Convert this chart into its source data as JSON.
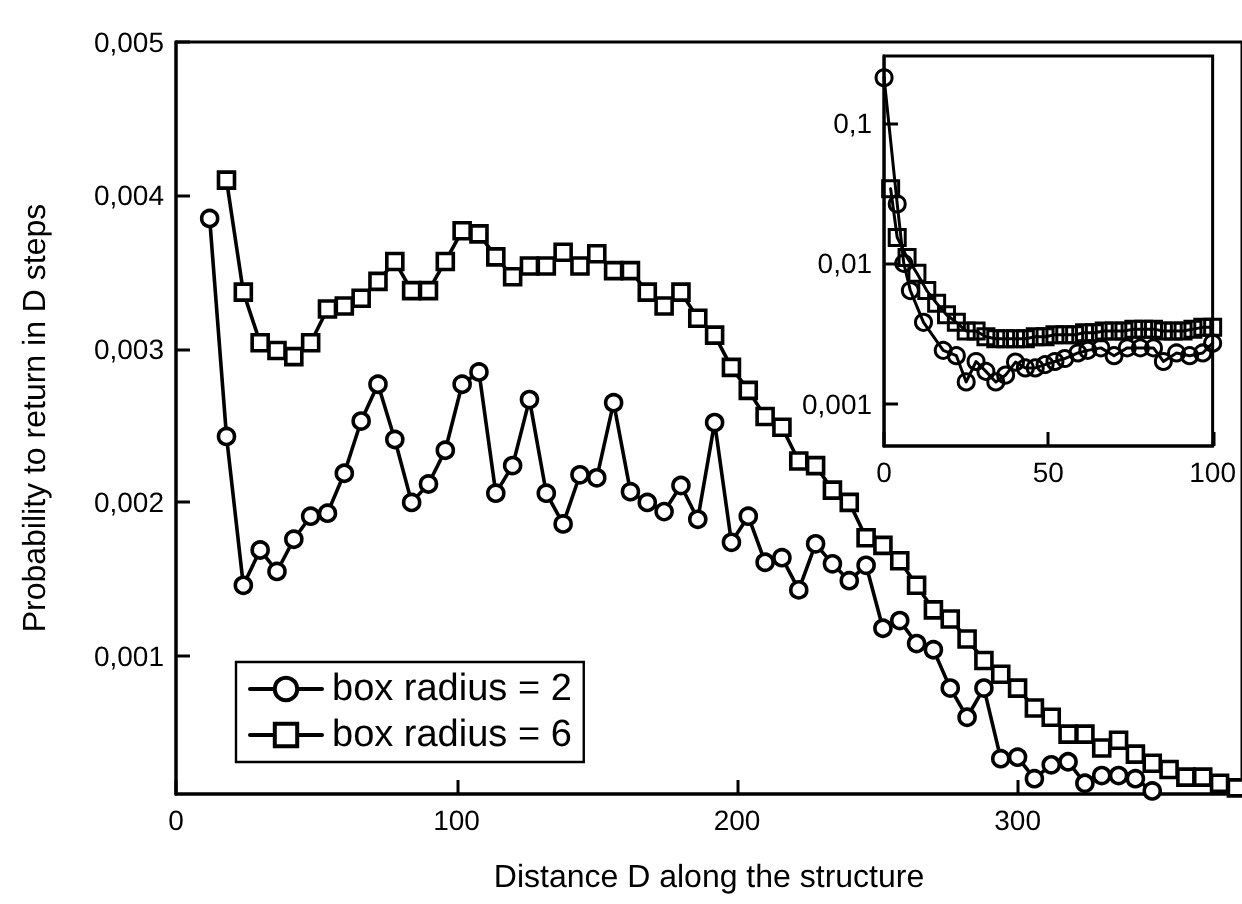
{
  "chart_data": [
    {
      "type": "line",
      "xlabel": "Distance D along the structure",
      "ylabel": "Probability to return in D steps",
      "xlim": [
        0,
        380
      ],
      "xticks": [
        0,
        100,
        200,
        300
      ],
      "ylim": [
        0.0001,
        0.005
      ],
      "yticks": [
        {
          "value": 0.001,
          "label": "0,001"
        },
        {
          "value": 0.002,
          "label": "0,002"
        },
        {
          "value": 0.003,
          "label": "0,003"
        },
        {
          "value": 0.004,
          "label": "0,004"
        },
        {
          "value": 0.005,
          "label": "0,005"
        }
      ],
      "legend": "bottom left",
      "series": [
        {
          "name": "box radius = 2",
          "color": "#000000",
          "marker": "circle",
          "x": [
            12,
            18,
            24,
            30,
            36,
            42,
            48,
            54,
            60,
            66,
            72,
            78,
            84,
            90,
            96,
            102,
            108,
            114,
            120,
            126,
            132,
            138,
            144,
            150,
            156,
            162,
            168,
            174,
            180,
            186,
            192,
            198,
            204,
            210,
            216,
            222,
            228,
            234,
            240,
            246,
            252,
            258,
            264,
            270,
            276,
            282,
            288,
            294,
            300,
            306,
            312,
            318,
            324,
            330,
            336,
            342,
            348
          ],
          "values": [
            0.00385,
            0.00243,
            0.00146,
            0.00169,
            0.00155,
            0.00176,
            0.00191,
            0.00193,
            0.00219,
            0.00253,
            0.00277,
            0.00241,
            0.002,
            0.00212,
            0.00234,
            0.00277,
            0.00285,
            0.00206,
            0.00224,
            0.00267,
            0.00206,
            0.00186,
            0.00218,
            0.00216,
            0.00265,
            0.00207,
            0.002,
            0.00194,
            0.00211,
            0.00189,
            0.00252,
            0.00174,
            0.00191,
            0.00161,
            0.00164,
            0.00143,
            0.00173,
            0.0016,
            0.00149,
            0.00159,
            0.00118,
            0.00123,
            0.00108,
            0.00104,
            0.00079,
            0.0006,
            0.00079,
            0.00033,
            0.00034,
            0.0002,
            0.00029,
            0.00031,
            0.00017,
            0.00022,
            0.00022,
            0.0002,
            0.00012
          ]
        },
        {
          "name": "box radius = 6",
          "color": "#000000",
          "marker": "square",
          "x": [
            18,
            24,
            30,
            36,
            42,
            48,
            54,
            60,
            66,
            72,
            78,
            84,
            90,
            96,
            102,
            108,
            114,
            120,
            126,
            132,
            138,
            144,
            150,
            156,
            162,
            168,
            174,
            180,
            186,
            192,
            198,
            204,
            210,
            216,
            222,
            228,
            234,
            240,
            246,
            252,
            258,
            264,
            270,
            276,
            282,
            288,
            294,
            300,
            306,
            312,
            318,
            324,
            330,
            336,
            342,
            348,
            354,
            360,
            366,
            372,
            378
          ],
          "values": [
            0.0041,
            0.00337,
            0.00304,
            0.00299,
            0.00295,
            0.00304,
            0.00326,
            0.00328,
            0.00333,
            0.00344,
            0.00357,
            0.00338,
            0.00338,
            0.00357,
            0.00377,
            0.00375,
            0.0036,
            0.00347,
            0.00354,
            0.00354,
            0.00363,
            0.00354,
            0.00362,
            0.00351,
            0.00351,
            0.00337,
            0.00328,
            0.00337,
            0.0032,
            0.00309,
            0.00288,
            0.00273,
            0.00256,
            0.00249,
            0.00227,
            0.00224,
            0.00208,
            0.002,
            0.00177,
            0.00172,
            0.00162,
            0.00146,
            0.0013,
            0.00124,
            0.00111,
            0.00097,
            0.00088,
            0.00079,
            0.00066,
            0.0006,
            0.00049,
            0.00049,
            0.0004,
            0.00045,
            0.00036,
            0.0003,
            0.00026,
            0.00021,
            0.00021,
            0.00017,
            0.00014
          ]
        }
      ]
    },
    {
      "type": "line",
      "log": "y",
      "xlim": [
        0,
        100
      ],
      "xticks": [
        0,
        50,
        100
      ],
      "ylim": [
        0.0005,
        0.3
      ],
      "yticks": [
        {
          "value": 0.001,
          "label": "0,001"
        },
        {
          "value": 0.01,
          "label": "0,01"
        },
        {
          "value": 0.1,
          "label": "0,1"
        }
      ],
      "series": [
        {
          "color": "#000000",
          "marker": "circle",
          "x": [
            0,
            4,
            6,
            8,
            12,
            18,
            22,
            25,
            28,
            31,
            34,
            37,
            40,
            43,
            46,
            49,
            52,
            55,
            59,
            62,
            66,
            70,
            74,
            78,
            82,
            85,
            89,
            93,
            97,
            100
          ],
          "values": [
            0.21,
            0.0265,
            0.01,
            0.0064,
            0.0038,
            0.0024,
            0.0022,
            0.00143,
            0.002,
            0.0017,
            0.00143,
            0.0016,
            0.00198,
            0.0018,
            0.0018,
            0.0019,
            0.002,
            0.0021,
            0.0023,
            0.0024,
            0.0025,
            0.0022,
            0.0025,
            0.0025,
            0.0025,
            0.002,
            0.0023,
            0.0022,
            0.0023,
            0.0027
          ]
        },
        {
          "color": "#000000",
          "marker": "square",
          "x": [
            2,
            4,
            7,
            10,
            13,
            16,
            19,
            22,
            25,
            28,
            31,
            34,
            37,
            40,
            43,
            46,
            49,
            52,
            55,
            58,
            61,
            64,
            67,
            70,
            73,
            76,
            79,
            82,
            85,
            88,
            91,
            94,
            97,
            100
          ],
          "values": [
            0.034,
            0.0153,
            0.011,
            0.0085,
            0.0064,
            0.0052,
            0.0043,
            0.0038,
            0.0033,
            0.0033,
            0.003,
            0.0029,
            0.0029,
            0.0029,
            0.0029,
            0.003,
            0.003,
            0.0031,
            0.0031,
            0.0031,
            0.0032,
            0.0032,
            0.0033,
            0.0033,
            0.0033,
            0.0034,
            0.0034,
            0.0034,
            0.0033,
            0.0033,
            0.0033,
            0.0034,
            0.0035,
            0.0035
          ]
        }
      ]
    }
  ]
}
